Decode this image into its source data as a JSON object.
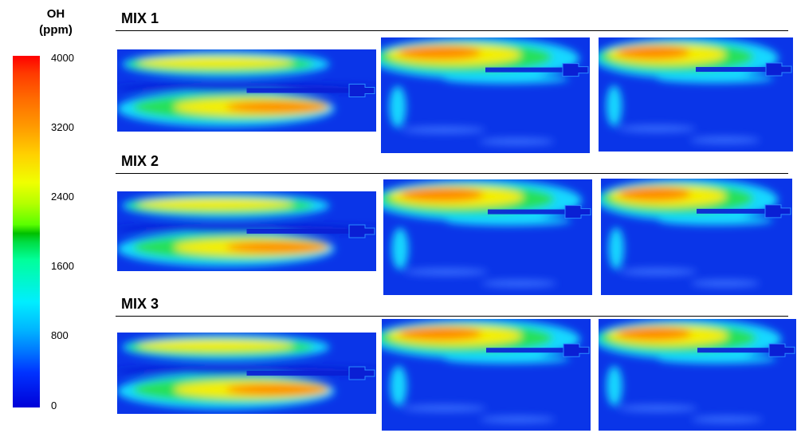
{
  "colorbar": {
    "title_line1": "OH",
    "title_line2": "(ppm)",
    "ticks": [
      "4000",
      "3200",
      "2400",
      "1600",
      "800",
      "0"
    ],
    "min": 0,
    "max": 4000
  },
  "rows": [
    {
      "label": "MIX 1",
      "panels": [
        {
          "variant": "a"
        },
        {
          "variant": "b"
        },
        {
          "variant": "c"
        }
      ]
    },
    {
      "label": "MIX 2",
      "panels": [
        {
          "variant": "a"
        },
        {
          "variant": "b"
        },
        {
          "variant": "c"
        }
      ]
    },
    {
      "label": "MIX 3",
      "panels": [
        {
          "variant": "a"
        },
        {
          "variant": "b"
        },
        {
          "variant": "c"
        }
      ]
    }
  ],
  "colors": {
    "blue": "#0a35e8",
    "deep_blue": "#0a1fd4",
    "cyan": "#12d8ff",
    "green": "#28e05a",
    "yellow": "#f4ee00",
    "orange": "#ff8a00",
    "red_orange": "#ff5500"
  }
}
